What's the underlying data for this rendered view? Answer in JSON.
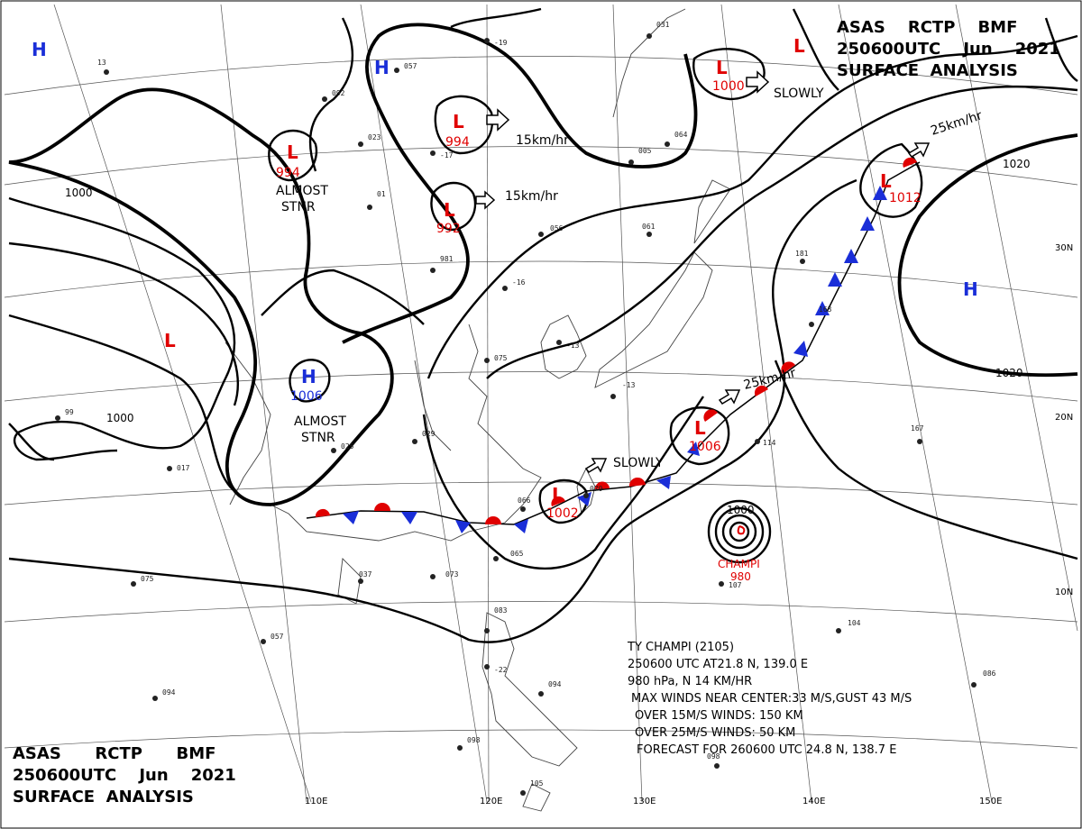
{
  "header_top": {
    "line1": "ASAS    RCTP    BMF",
    "line2": "250600UTC    Jun    2021",
    "line3": "SURFACE  ANALYSIS"
  },
  "header_bottom": {
    "line1": "ASAS      RCTP      BMF",
    "line2": "250600UTC    Jun    2021",
    "line3": "SURFACE  ANALYSIS"
  },
  "lon_labels": [
    "110E",
    "120E",
    "130E",
    "140E",
    "150E"
  ],
  "lat_labels": [
    "30N",
    "20N",
    "10N"
  ],
  "pressure_centers": [
    {
      "type": "H",
      "value": ""
    },
    {
      "type": "H",
      "value": ""
    },
    {
      "type": "L",
      "value": "994",
      "note": "ALMOST STNR"
    },
    {
      "type": "L",
      "value": "994"
    },
    {
      "type": "L",
      "value": "992"
    },
    {
      "type": "L",
      "value": "1000"
    },
    {
      "type": "L",
      "value": ""
    },
    {
      "type": "L",
      "value": "1012"
    },
    {
      "type": "H",
      "value": ""
    },
    {
      "type": "L",
      "value": ""
    },
    {
      "type": "H",
      "value": "1006",
      "note": "ALMOST STNR"
    },
    {
      "type": "L",
      "value": "1006"
    },
    {
      "type": "L",
      "value": "1002"
    }
  ],
  "isobar_labels": [
    "1000",
    "1000",
    "1020",
    "1020",
    "1000"
  ],
  "motions": [
    "15km/hr",
    "15km/hr",
    "SLOWLY",
    "25km/hr",
    "25km/hr",
    "SLOWLY"
  ],
  "notes": {
    "almost_stnr_1_a": "ALMOST",
    "almost_stnr_1_b": "STNR",
    "almost_stnr_2_a": "ALMOST",
    "almost_stnr_2_b": "STNR"
  },
  "typhoon": {
    "name": "CHAMPI",
    "pressure": "980",
    "inner": "1000",
    "line1": "TY  CHAMPI  (2105)",
    "line2": "250600 UTC   AT21.8 N, 139.0 E",
    "line3": "980 hPa, N  14 KM/HR",
    "line4": "MAX WINDS NEAR CENTER:33 M/S,GUST 43 M/S",
    "line5": "OVER 15M/S WINDS: 150 KM",
    "line6": "OVER 25M/S WINDS: 50 KM",
    "line7": "FORECAST FOR 260600 UTC 24.8 N, 138.7 E"
  },
  "colors": {
    "low": "#e00000",
    "high": "#1a2ed8",
    "warm_front": "#e00000",
    "cold_front": "#1a2ed8"
  }
}
